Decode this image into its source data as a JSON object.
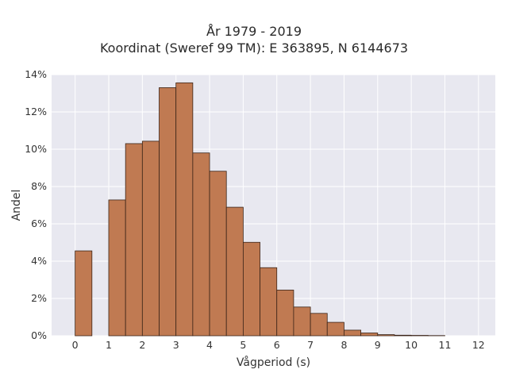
{
  "title": {
    "line1": "År 1979 - 2019",
    "line2": "Koordinat (Sweref 99 TM): E 363895, N 6144673"
  },
  "chart_data": {
    "type": "bar",
    "title": "År 1979 - 2019",
    "subtitle": "Koordinat (Sweref 99 TM): E 363895, N 6144673",
    "xlabel": "Vågperiod (s)",
    "ylabel": "Andel",
    "xlim": [
      -0.7,
      12.5
    ],
    "ylim": [
      0,
      0.14
    ],
    "x_ticks": [
      0,
      1,
      2,
      3,
      4,
      5,
      6,
      7,
      8,
      9,
      10,
      11,
      12
    ],
    "y_ticks": [
      0,
      0.02,
      0.04,
      0.06,
      0.08,
      0.1,
      0.12,
      0.14
    ],
    "y_tick_labels": [
      "0%",
      "2%",
      "4%",
      "6%",
      "8%",
      "10%",
      "12%",
      "14%"
    ],
    "grid": true,
    "bar_color": "#c07a52",
    "bar_edge_color": "#3a2418",
    "plot_background": "#e8e8f0",
    "grid_color": "#ffffff",
    "bins": [
      {
        "x0": 0.0,
        "x1": 0.5,
        "value": 0.0455
      },
      {
        "x0": 1.0,
        "x1": 1.5,
        "value": 0.0728
      },
      {
        "x0": 1.5,
        "x1": 2.0,
        "value": 0.103
      },
      {
        "x0": 2.0,
        "x1": 2.5,
        "value": 0.1043
      },
      {
        "x0": 2.5,
        "x1": 3.0,
        "value": 0.133
      },
      {
        "x0": 3.0,
        "x1": 3.5,
        "value": 0.1356
      },
      {
        "x0": 3.5,
        "x1": 4.0,
        "value": 0.098
      },
      {
        "x0": 4.0,
        "x1": 4.5,
        "value": 0.0882
      },
      {
        "x0": 4.5,
        "x1": 5.0,
        "value": 0.0689
      },
      {
        "x0": 5.0,
        "x1": 5.5,
        "value": 0.0501
      },
      {
        "x0": 5.5,
        "x1": 6.0,
        "value": 0.0365
      },
      {
        "x0": 6.0,
        "x1": 6.5,
        "value": 0.0245
      },
      {
        "x0": 6.5,
        "x1": 7.0,
        "value": 0.0154
      },
      {
        "x0": 7.0,
        "x1": 7.5,
        "value": 0.012
      },
      {
        "x0": 7.5,
        "x1": 8.0,
        "value": 0.0072
      },
      {
        "x0": 8.0,
        "x1": 8.5,
        "value": 0.003
      },
      {
        "x0": 8.5,
        "x1": 9.0,
        "value": 0.0015
      },
      {
        "x0": 9.0,
        "x1": 9.5,
        "value": 0.0006
      },
      {
        "x0": 9.5,
        "x1": 10.0,
        "value": 0.0003
      },
      {
        "x0": 10.0,
        "x1": 10.5,
        "value": 0.0002
      },
      {
        "x0": 10.5,
        "x1": 11.0,
        "value": 0.0001
      }
    ]
  }
}
